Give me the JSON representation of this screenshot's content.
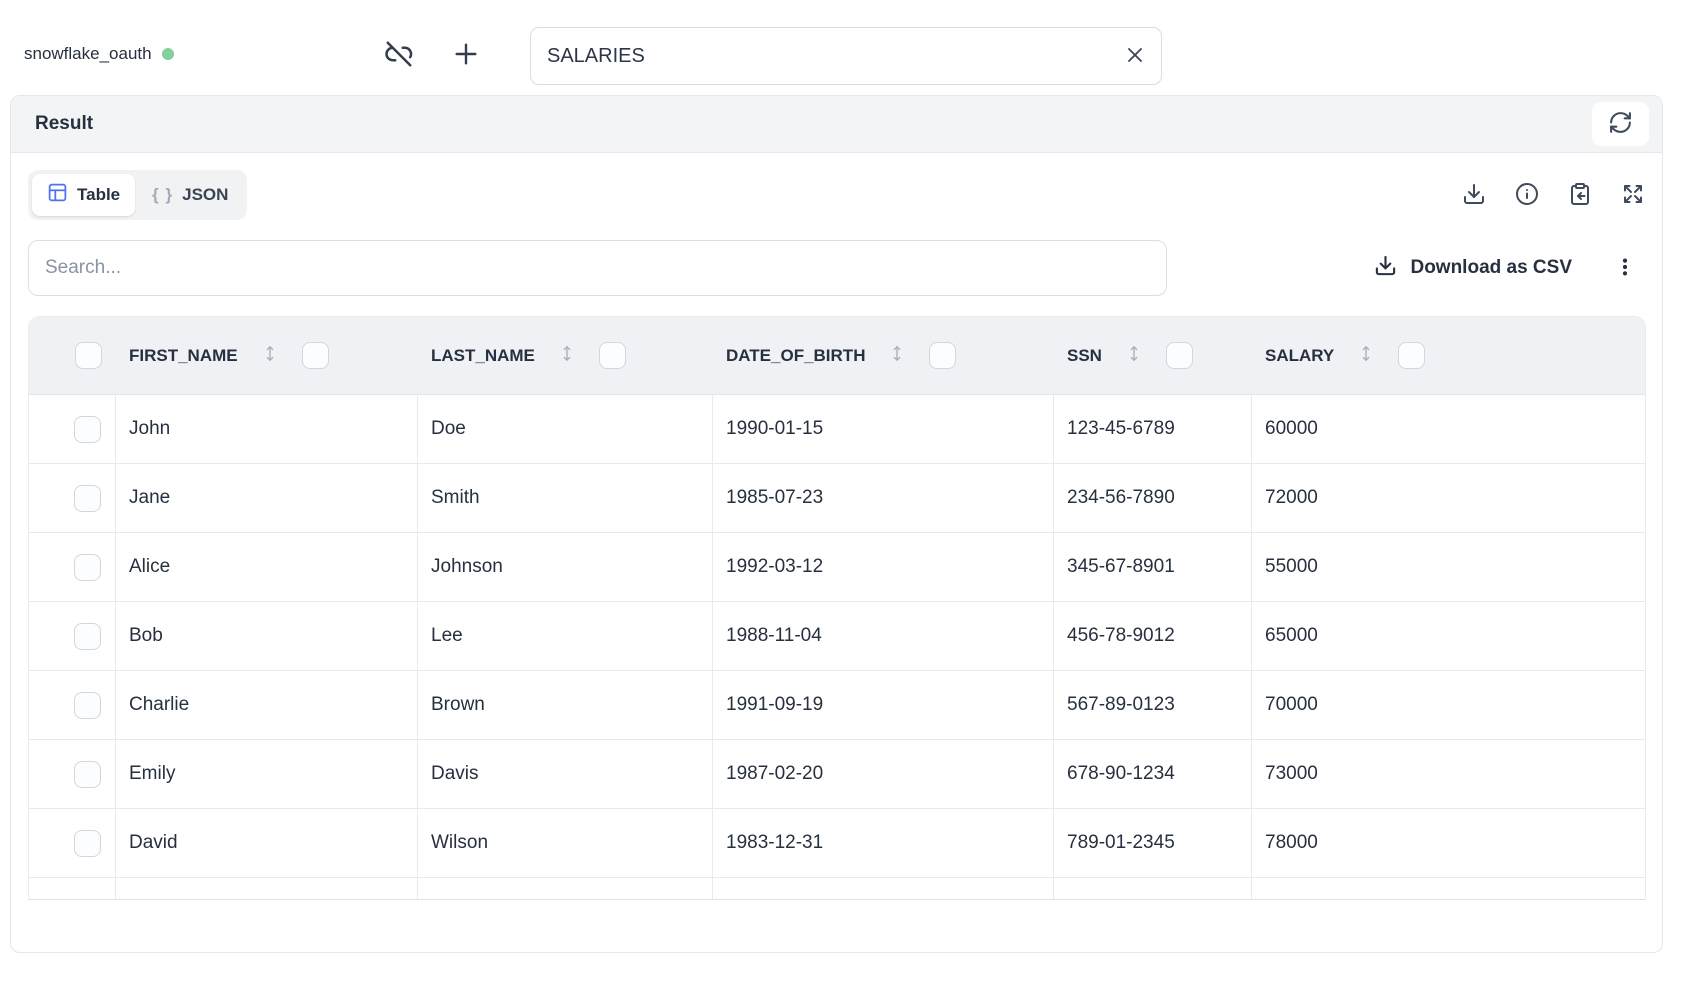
{
  "connection": {
    "name": "snowflake_oauth"
  },
  "topbar": {
    "table_name_value": "SALARIES"
  },
  "result_panel": {
    "title": "Result"
  },
  "tabs": {
    "table_label": "Table",
    "json_label": "JSON",
    "json_braces_glyph": "{ }"
  },
  "toolbar": {
    "search_placeholder": "Search...",
    "download_csv_label": "Download as CSV"
  },
  "icons": {
    "topbar": [
      "unlink-icon",
      "plus-icon",
      "clear-x-icon"
    ],
    "panel": [
      "refresh-icon"
    ],
    "result_actions": [
      "download-icon",
      "info-icon",
      "clipboard-paste-icon",
      "expand-icon",
      "kebab-menu-icon"
    ]
  },
  "colors": {
    "status_green": "#84cf9b",
    "accent_blue": "#4c72f5",
    "header_bg": "#eff1f4",
    "panel_header_bg": "#f3f4f6",
    "border": "#e4e7ec",
    "text_dark": "#27303f",
    "muted_gray": "#8a93a3"
  },
  "table": {
    "columns": [
      {
        "key": "first_name",
        "label": "FIRST_NAME"
      },
      {
        "key": "last_name",
        "label": "LAST_NAME"
      },
      {
        "key": "date_of_birth",
        "label": "DATE_OF_BIRTH"
      },
      {
        "key": "ssn",
        "label": "SSN"
      },
      {
        "key": "salary",
        "label": "SALARY"
      }
    ],
    "rows": [
      {
        "first_name": "John",
        "last_name": "Doe",
        "date_of_birth": "1990-01-15",
        "ssn": "123-45-6789",
        "salary": "60000"
      },
      {
        "first_name": "Jane",
        "last_name": "Smith",
        "date_of_birth": "1985-07-23",
        "ssn": "234-56-7890",
        "salary": "72000"
      },
      {
        "first_name": "Alice",
        "last_name": "Johnson",
        "date_of_birth": "1992-03-12",
        "ssn": "345-67-8901",
        "salary": "55000"
      },
      {
        "first_name": "Bob",
        "last_name": "Lee",
        "date_of_birth": "1988-11-04",
        "ssn": "456-78-9012",
        "salary": "65000"
      },
      {
        "first_name": "Charlie",
        "last_name": "Brown",
        "date_of_birth": "1991-09-19",
        "ssn": "567-89-0123",
        "salary": "70000"
      },
      {
        "first_name": "Emily",
        "last_name": "Davis",
        "date_of_birth": "1987-02-20",
        "ssn": "678-90-1234",
        "salary": "73000"
      },
      {
        "first_name": "David",
        "last_name": "Wilson",
        "date_of_birth": "1983-12-31",
        "ssn": "789-01-2345",
        "salary": "78000"
      }
    ]
  }
}
